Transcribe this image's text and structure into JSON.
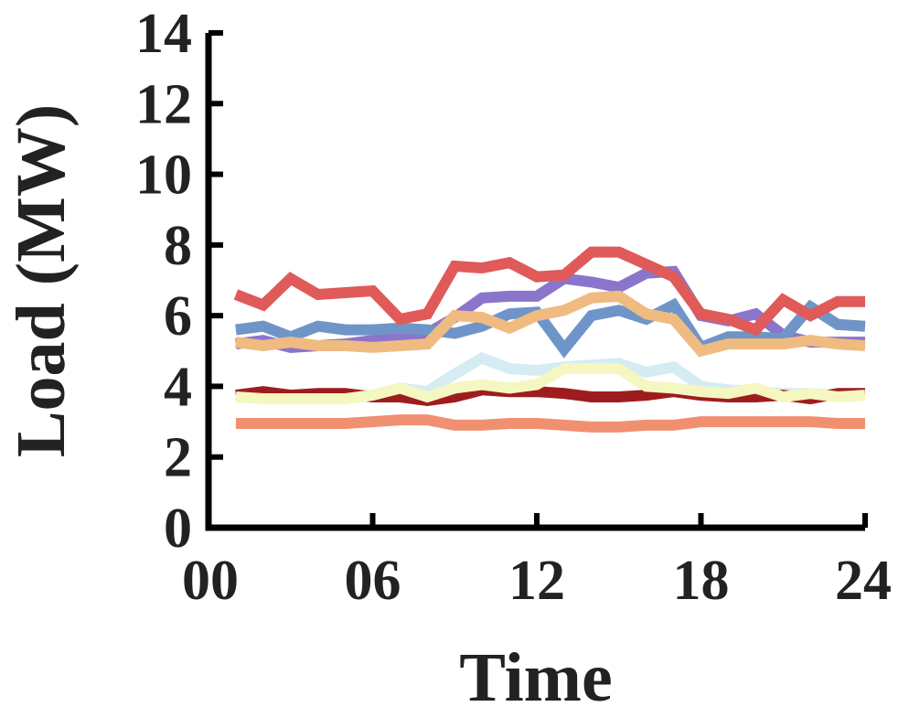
{
  "chart_data": {
    "type": "line",
    "xlabel": "Time",
    "ylabel": "Load (MW)",
    "xlim": [
      0,
      24
    ],
    "ylim": [
      0,
      14
    ],
    "xticks": [
      0,
      6,
      12,
      18,
      24
    ],
    "xtick_labels": [
      "00",
      "06",
      "12",
      "18",
      "24"
    ],
    "yticks": [
      0,
      2,
      4,
      6,
      8,
      10,
      12,
      14
    ],
    "ytick_labels": [
      "0",
      "2",
      "4",
      "6",
      "8",
      "10",
      "12",
      "14"
    ],
    "grid": false,
    "legend": "none",
    "x": [
      1,
      2,
      3,
      4,
      5,
      6,
      7,
      8,
      9,
      10,
      11,
      12,
      13,
      14,
      15,
      16,
      17,
      18,
      19,
      20,
      21,
      22,
      23,
      24
    ],
    "series": [
      {
        "color": "#8b75cc",
        "values": [
          5.2,
          5.3,
          5.1,
          5.15,
          5.2,
          5.3,
          5.4,
          5.5,
          5.95,
          6.5,
          6.55,
          6.55,
          7.05,
          6.95,
          6.8,
          7.2,
          7.25,
          6.0,
          5.85,
          6.05,
          5.45,
          5.25,
          5.25,
          5.25
        ]
      },
      {
        "color": "#6f95c8",
        "values": [
          5.6,
          5.7,
          5.4,
          5.7,
          5.6,
          5.6,
          5.65,
          5.6,
          5.5,
          5.7,
          6.05,
          6.1,
          5.05,
          6.0,
          6.15,
          5.9,
          6.3,
          5.1,
          5.4,
          5.4,
          5.35,
          6.25,
          5.75,
          5.7
        ]
      },
      {
        "color": "#e05a5a",
        "values": [
          6.6,
          6.3,
          7.05,
          6.6,
          6.65,
          6.7,
          5.9,
          6.05,
          7.4,
          7.35,
          7.5,
          7.1,
          7.15,
          7.8,
          7.8,
          7.45,
          7.1,
          6.05,
          5.9,
          5.6,
          6.45,
          6.0,
          6.4,
          6.4
        ]
      },
      {
        "color": "#f0bb80",
        "values": [
          5.25,
          5.15,
          5.25,
          5.15,
          5.15,
          5.1,
          5.15,
          5.2,
          6.0,
          5.95,
          5.65,
          6.0,
          6.15,
          6.5,
          6.55,
          6.05,
          5.9,
          5.0,
          5.2,
          5.2,
          5.2,
          5.3,
          5.2,
          5.15
        ]
      },
      {
        "color": "#d5ecf2",
        "values": [
          3.75,
          3.7,
          3.75,
          3.75,
          3.7,
          3.75,
          3.95,
          3.85,
          4.35,
          4.8,
          4.5,
          4.45,
          4.55,
          4.6,
          4.65,
          4.4,
          4.55,
          4.0,
          3.9,
          3.85,
          3.8,
          3.8,
          3.75,
          3.75
        ]
      },
      {
        "color": "#9e1c1e",
        "values": [
          3.75,
          3.85,
          3.75,
          3.8,
          3.8,
          3.7,
          3.7,
          3.6,
          3.7,
          3.9,
          3.85,
          3.85,
          3.8,
          3.7,
          3.7,
          3.75,
          3.85,
          3.75,
          3.7,
          3.7,
          3.75,
          3.65,
          3.8,
          3.8
        ]
      },
      {
        "color": "#f5f7c0",
        "values": [
          3.7,
          3.65,
          3.65,
          3.65,
          3.65,
          3.75,
          3.95,
          3.7,
          3.95,
          4.05,
          3.95,
          4.05,
          4.5,
          4.5,
          4.5,
          4.0,
          3.95,
          3.85,
          3.8,
          3.95,
          3.7,
          3.8,
          3.7,
          3.75
        ]
      },
      {
        "color": "#f09070",
        "values": [
          2.95,
          2.95,
          2.95,
          2.95,
          2.95,
          3.0,
          3.05,
          3.05,
          2.9,
          2.9,
          2.95,
          2.95,
          2.9,
          2.85,
          2.85,
          2.9,
          2.9,
          3.0,
          3.0,
          3.0,
          3.0,
          3.0,
          2.95,
          2.95
        ]
      }
    ]
  }
}
